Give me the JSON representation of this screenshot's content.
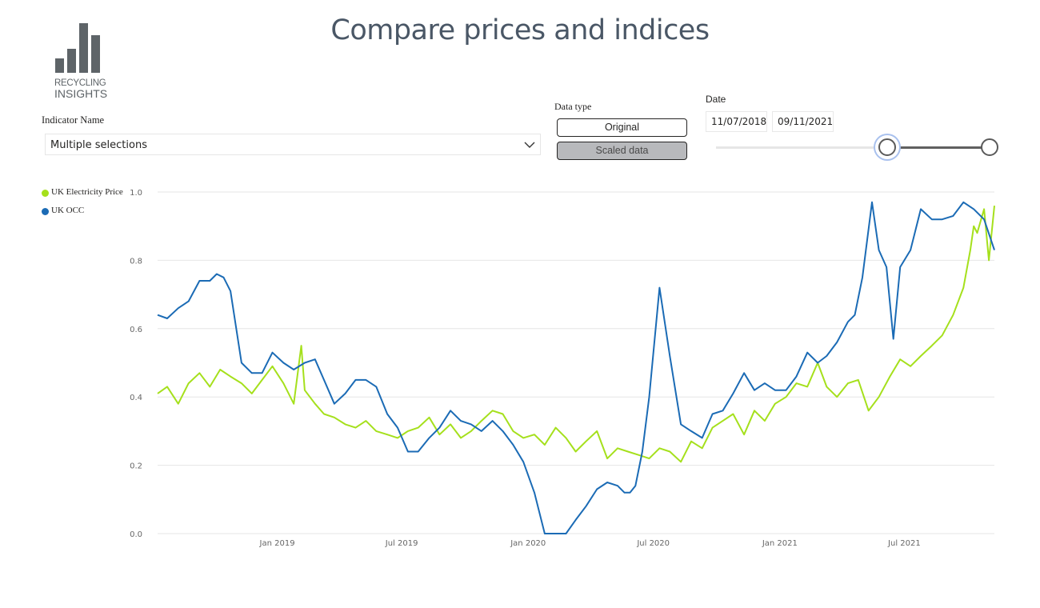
{
  "logo": {
    "line1": "RECYCLING",
    "line2": "INSIGHTS"
  },
  "title": "Compare prices and indices",
  "filters": {
    "indicator_label": "Indicator Name",
    "indicator_value": "Multiple selections",
    "data_type_label": "Data type",
    "data_type_options": [
      "Original",
      "Scaled data"
    ],
    "data_type_selected": "Scaled data",
    "date_label": "Date",
    "date_from": "11/07/2018",
    "date_to": "09/11/2021"
  },
  "icons": {
    "dropdown": "chevron-down-icon"
  },
  "colors": {
    "electricity": "#a5e01c",
    "occ": "#1b6bb5",
    "grid": "#e6e6e6",
    "title": "#4a5766"
  },
  "chart_data": {
    "type": "line",
    "title": "",
    "xlabel": "",
    "ylabel": "",
    "ylim": [
      0,
      1
    ],
    "yticks": [
      "0.0",
      "0.2",
      "0.4",
      "0.6",
      "0.8",
      "1.0"
    ],
    "xticks": [
      {
        "label": "Jan 2019",
        "date": "2019-01-01"
      },
      {
        "label": "Jul 2019",
        "date": "2019-07-01"
      },
      {
        "label": "Jan 2020",
        "date": "2020-01-01"
      },
      {
        "label": "Jul 2020",
        "date": "2020-07-01"
      },
      {
        "label": "Jan 2021",
        "date": "2021-01-01"
      },
      {
        "label": "Jul 2021",
        "date": "2021-07-01"
      }
    ],
    "xrange": [
      "2018-07-11",
      "2021-11-09"
    ],
    "legend_position": "top-left",
    "grid": true,
    "series": [
      {
        "name": "UK Electricity Price",
        "color": "#a5e01c",
        "x": [
          "2018-07-11",
          "2018-07-25",
          "2018-08-10",
          "2018-08-25",
          "2018-09-10",
          "2018-09-25",
          "2018-10-10",
          "2018-10-25",
          "2018-11-10",
          "2018-11-25",
          "2018-12-10",
          "2018-12-25",
          "2019-01-10",
          "2019-01-25",
          "2019-02-05",
          "2019-02-10",
          "2019-02-25",
          "2019-03-10",
          "2019-03-25",
          "2019-04-10",
          "2019-04-25",
          "2019-05-10",
          "2019-05-25",
          "2019-06-10",
          "2019-06-25",
          "2019-07-10",
          "2019-07-25",
          "2019-08-10",
          "2019-08-25",
          "2019-09-10",
          "2019-09-25",
          "2019-10-10",
          "2019-10-25",
          "2019-11-10",
          "2019-11-25",
          "2019-12-10",
          "2019-12-25",
          "2020-01-10",
          "2020-01-25",
          "2020-02-10",
          "2020-02-25",
          "2020-03-10",
          "2020-03-25",
          "2020-04-10",
          "2020-04-25",
          "2020-05-10",
          "2020-05-25",
          "2020-06-10",
          "2020-06-25",
          "2020-07-10",
          "2020-07-25",
          "2020-08-10",
          "2020-08-25",
          "2020-09-10",
          "2020-09-25",
          "2020-10-10",
          "2020-10-25",
          "2020-11-10",
          "2020-11-25",
          "2020-12-10",
          "2020-12-25",
          "2021-01-10",
          "2021-01-25",
          "2021-02-10",
          "2021-02-25",
          "2021-03-10",
          "2021-03-25",
          "2021-04-10",
          "2021-04-25",
          "2021-05-10",
          "2021-05-25",
          "2021-06-10",
          "2021-06-25",
          "2021-07-10",
          "2021-07-25",
          "2021-08-10",
          "2021-08-25",
          "2021-09-10",
          "2021-09-25",
          "2021-10-05",
          "2021-10-10",
          "2021-10-15",
          "2021-10-25",
          "2021-11-01",
          "2021-11-09"
        ],
        "values": [
          0.41,
          0.43,
          0.38,
          0.44,
          0.47,
          0.43,
          0.48,
          0.46,
          0.44,
          0.41,
          0.45,
          0.49,
          0.44,
          0.38,
          0.55,
          0.42,
          0.38,
          0.35,
          0.34,
          0.32,
          0.31,
          0.33,
          0.3,
          0.29,
          0.28,
          0.3,
          0.31,
          0.34,
          0.29,
          0.32,
          0.28,
          0.3,
          0.33,
          0.36,
          0.35,
          0.3,
          0.28,
          0.29,
          0.26,
          0.31,
          0.28,
          0.24,
          0.27,
          0.3,
          0.22,
          0.25,
          0.24,
          0.23,
          0.22,
          0.25,
          0.24,
          0.21,
          0.27,
          0.25,
          0.31,
          0.33,
          0.35,
          0.29,
          0.36,
          0.33,
          0.38,
          0.4,
          0.44,
          0.43,
          0.5,
          0.43,
          0.4,
          0.44,
          0.45,
          0.36,
          0.4,
          0.46,
          0.51,
          0.49,
          0.52,
          0.55,
          0.58,
          0.64,
          0.72,
          0.83,
          0.9,
          0.88,
          0.95,
          0.8,
          0.96
        ]
      },
      {
        "name": "UK OCC",
        "color": "#1b6bb5",
        "x": [
          "2018-07-11",
          "2018-07-25",
          "2018-08-10",
          "2018-08-25",
          "2018-09-10",
          "2018-09-25",
          "2018-10-05",
          "2018-10-15",
          "2018-10-25",
          "2018-11-10",
          "2018-11-25",
          "2018-12-10",
          "2018-12-25",
          "2019-01-10",
          "2019-01-25",
          "2019-02-10",
          "2019-02-25",
          "2019-03-10",
          "2019-03-25",
          "2019-04-10",
          "2019-04-25",
          "2019-05-10",
          "2019-05-25",
          "2019-06-10",
          "2019-06-25",
          "2019-07-10",
          "2019-07-25",
          "2019-08-10",
          "2019-08-25",
          "2019-09-10",
          "2019-09-25",
          "2019-10-10",
          "2019-10-25",
          "2019-11-10",
          "2019-11-25",
          "2019-12-10",
          "2019-12-25",
          "2020-01-10",
          "2020-01-25",
          "2020-02-10",
          "2020-02-25",
          "2020-03-10",
          "2020-03-25",
          "2020-04-10",
          "2020-04-25",
          "2020-05-10",
          "2020-05-20",
          "2020-05-28",
          "2020-06-05",
          "2020-06-15",
          "2020-06-25",
          "2020-07-10",
          "2020-07-25",
          "2020-08-10",
          "2020-08-25",
          "2020-09-10",
          "2020-09-25",
          "2020-10-10",
          "2020-10-25",
          "2020-11-10",
          "2020-11-25",
          "2020-12-10",
          "2020-12-25",
          "2021-01-10",
          "2021-01-25",
          "2021-02-10",
          "2021-02-25",
          "2021-03-10",
          "2021-03-25",
          "2021-04-10",
          "2021-04-20",
          "2021-05-01",
          "2021-05-15",
          "2021-05-25",
          "2021-06-05",
          "2021-06-15",
          "2021-06-25",
          "2021-07-10",
          "2021-07-25",
          "2021-08-10",
          "2021-08-25",
          "2021-09-10",
          "2021-09-25",
          "2021-10-10",
          "2021-10-25",
          "2021-11-09"
        ],
        "values": [
          0.64,
          0.63,
          0.66,
          0.68,
          0.74,
          0.74,
          0.76,
          0.75,
          0.71,
          0.5,
          0.47,
          0.47,
          0.53,
          0.5,
          0.48,
          0.5,
          0.51,
          0.45,
          0.38,
          0.41,
          0.45,
          0.45,
          0.43,
          0.35,
          0.31,
          0.24,
          0.24,
          0.28,
          0.31,
          0.36,
          0.33,
          0.32,
          0.3,
          0.33,
          0.3,
          0.26,
          0.21,
          0.12,
          0.0,
          0.0,
          0.0,
          0.04,
          0.08,
          0.13,
          0.15,
          0.14,
          0.12,
          0.12,
          0.14,
          0.24,
          0.4,
          0.72,
          0.52,
          0.32,
          0.3,
          0.28,
          0.35,
          0.36,
          0.41,
          0.47,
          0.42,
          0.44,
          0.42,
          0.42,
          0.46,
          0.53,
          0.5,
          0.52,
          0.56,
          0.62,
          0.64,
          0.75,
          0.97,
          0.83,
          0.78,
          0.57,
          0.78,
          0.83,
          0.95,
          0.92,
          0.92,
          0.93,
          0.97,
          0.95,
          0.92,
          0.83
        ]
      }
    ]
  }
}
